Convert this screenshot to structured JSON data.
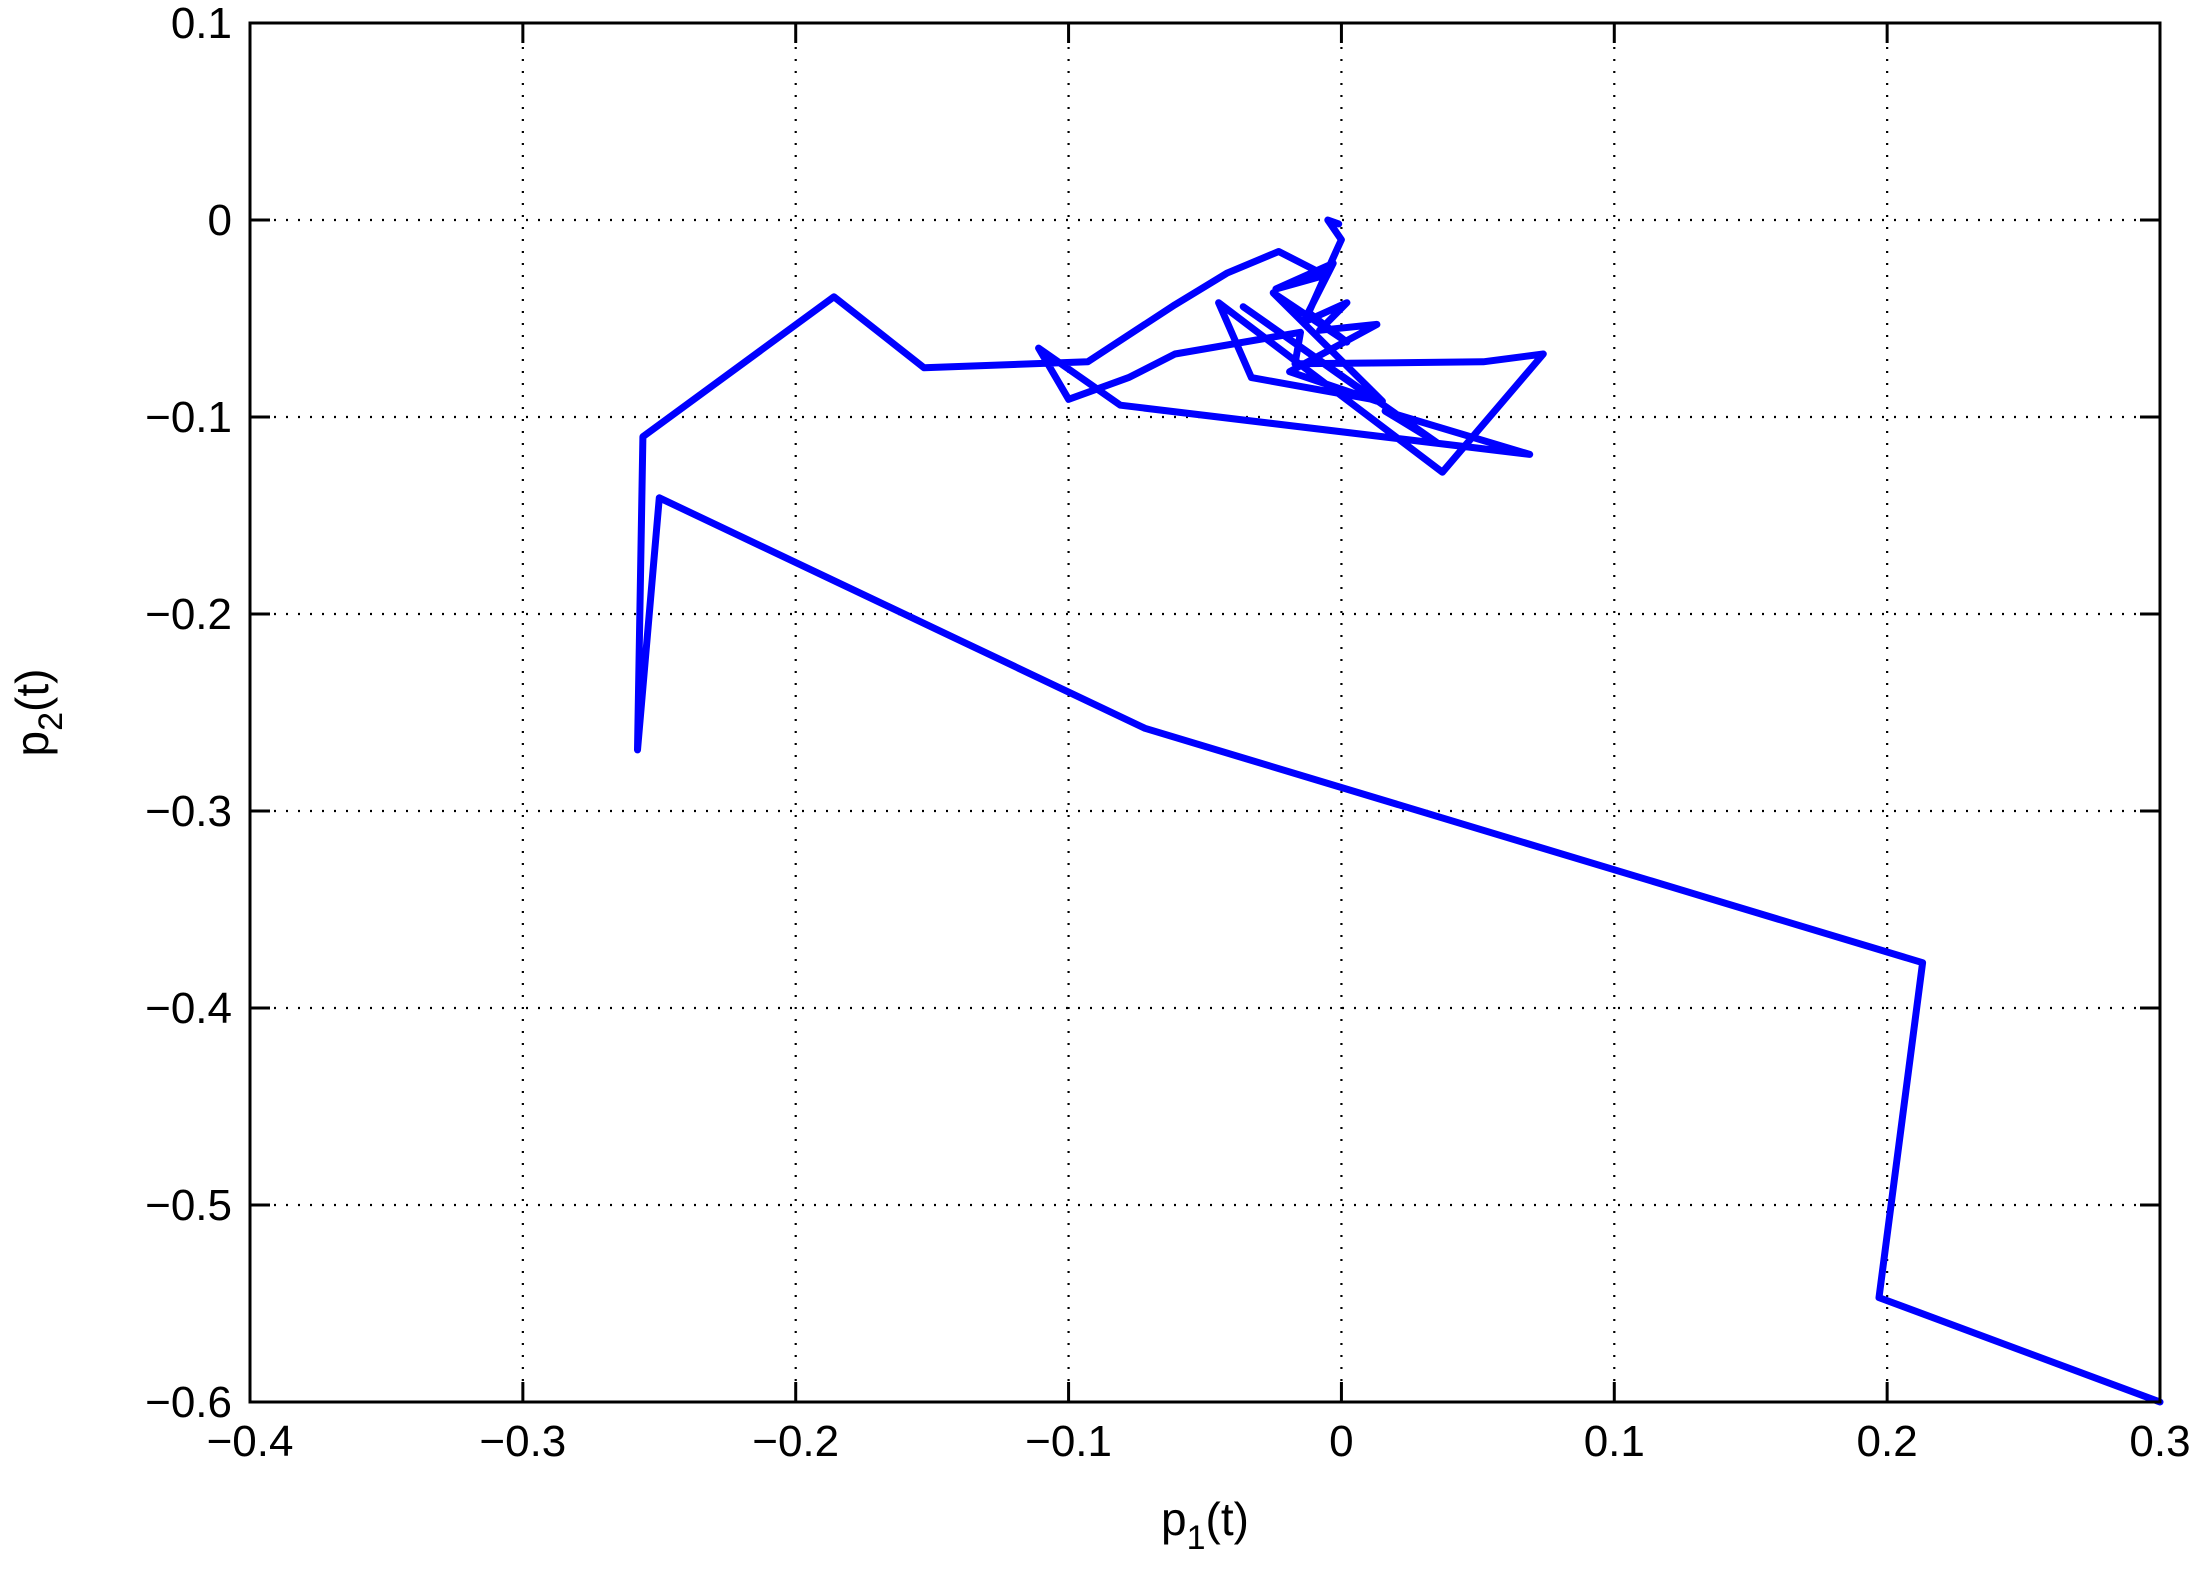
{
  "chart_data": {
    "type": "line",
    "title": "",
    "xlabel": "p1(t)",
    "ylabel": "p2(t)",
    "xlim": [
      -0.4,
      0.3
    ],
    "ylim": [
      -0.6,
      0.1
    ],
    "xticks": [
      -0.4,
      -0.3,
      -0.2,
      -0.1,
      0,
      0.1,
      0.2,
      0.3
    ],
    "yticks": [
      -0.6,
      -0.5,
      -0.4,
      -0.3,
      -0.2,
      -0.1,
      0,
      0.1
    ],
    "xtick_labels": [
      "−0.4",
      "−0.3",
      "−0.2",
      "−0.1",
      "0",
      "0.1",
      "0.2",
      "0.3"
    ],
    "ytick_labels": [
      "−0.6",
      "−0.5",
      "−0.4",
      "−0.3",
      "−0.2",
      "−0.1",
      "0",
      "0.1"
    ],
    "grid": true,
    "legend": "none",
    "series": [
      {
        "color": "#0000ff",
        "x": [
          0.3,
          0.197,
          0.213,
          -0.072,
          -0.25,
          -0.258,
          -0.256,
          -0.186,
          -0.153,
          -0.093,
          -0.061,
          -0.042,
          -0.023,
          -0.006,
          -0.024,
          -0.003,
          -0.014,
          0.002,
          -0.008,
          0.013,
          -0.019,
          0.013,
          -0.036,
          0.035,
          0.016,
          0.069,
          -0.081,
          -0.111,
          -0.1,
          -0.078,
          -0.061,
          -0.015,
          -0.017,
          0.052,
          0.074,
          0.037,
          -0.045,
          -0.033,
          0.015,
          -0.025,
          0.002,
          -0.012,
          -0.002,
          0.0,
          -0.005,
          -0.001
        ],
        "y": [
          -0.6,
          -0.547,
          -0.377,
          -0.258,
          -0.141,
          -0.269,
          -0.11,
          -0.039,
          -0.075,
          -0.072,
          -0.043,
          -0.027,
          -0.016,
          -0.028,
          -0.035,
          -0.022,
          -0.052,
          -0.042,
          -0.056,
          -0.053,
          -0.077,
          -0.092,
          -0.044,
          -0.113,
          -0.097,
          -0.119,
          -0.094,
          -0.065,
          -0.091,
          -0.08,
          -0.068,
          -0.057,
          -0.073,
          -0.072,
          -0.068,
          -0.128,
          -0.042,
          -0.08,
          -0.092,
          -0.037,
          -0.062,
          -0.047,
          -0.016,
          -0.01,
          0.0,
          -0.002
        ]
      }
    ]
  }
}
